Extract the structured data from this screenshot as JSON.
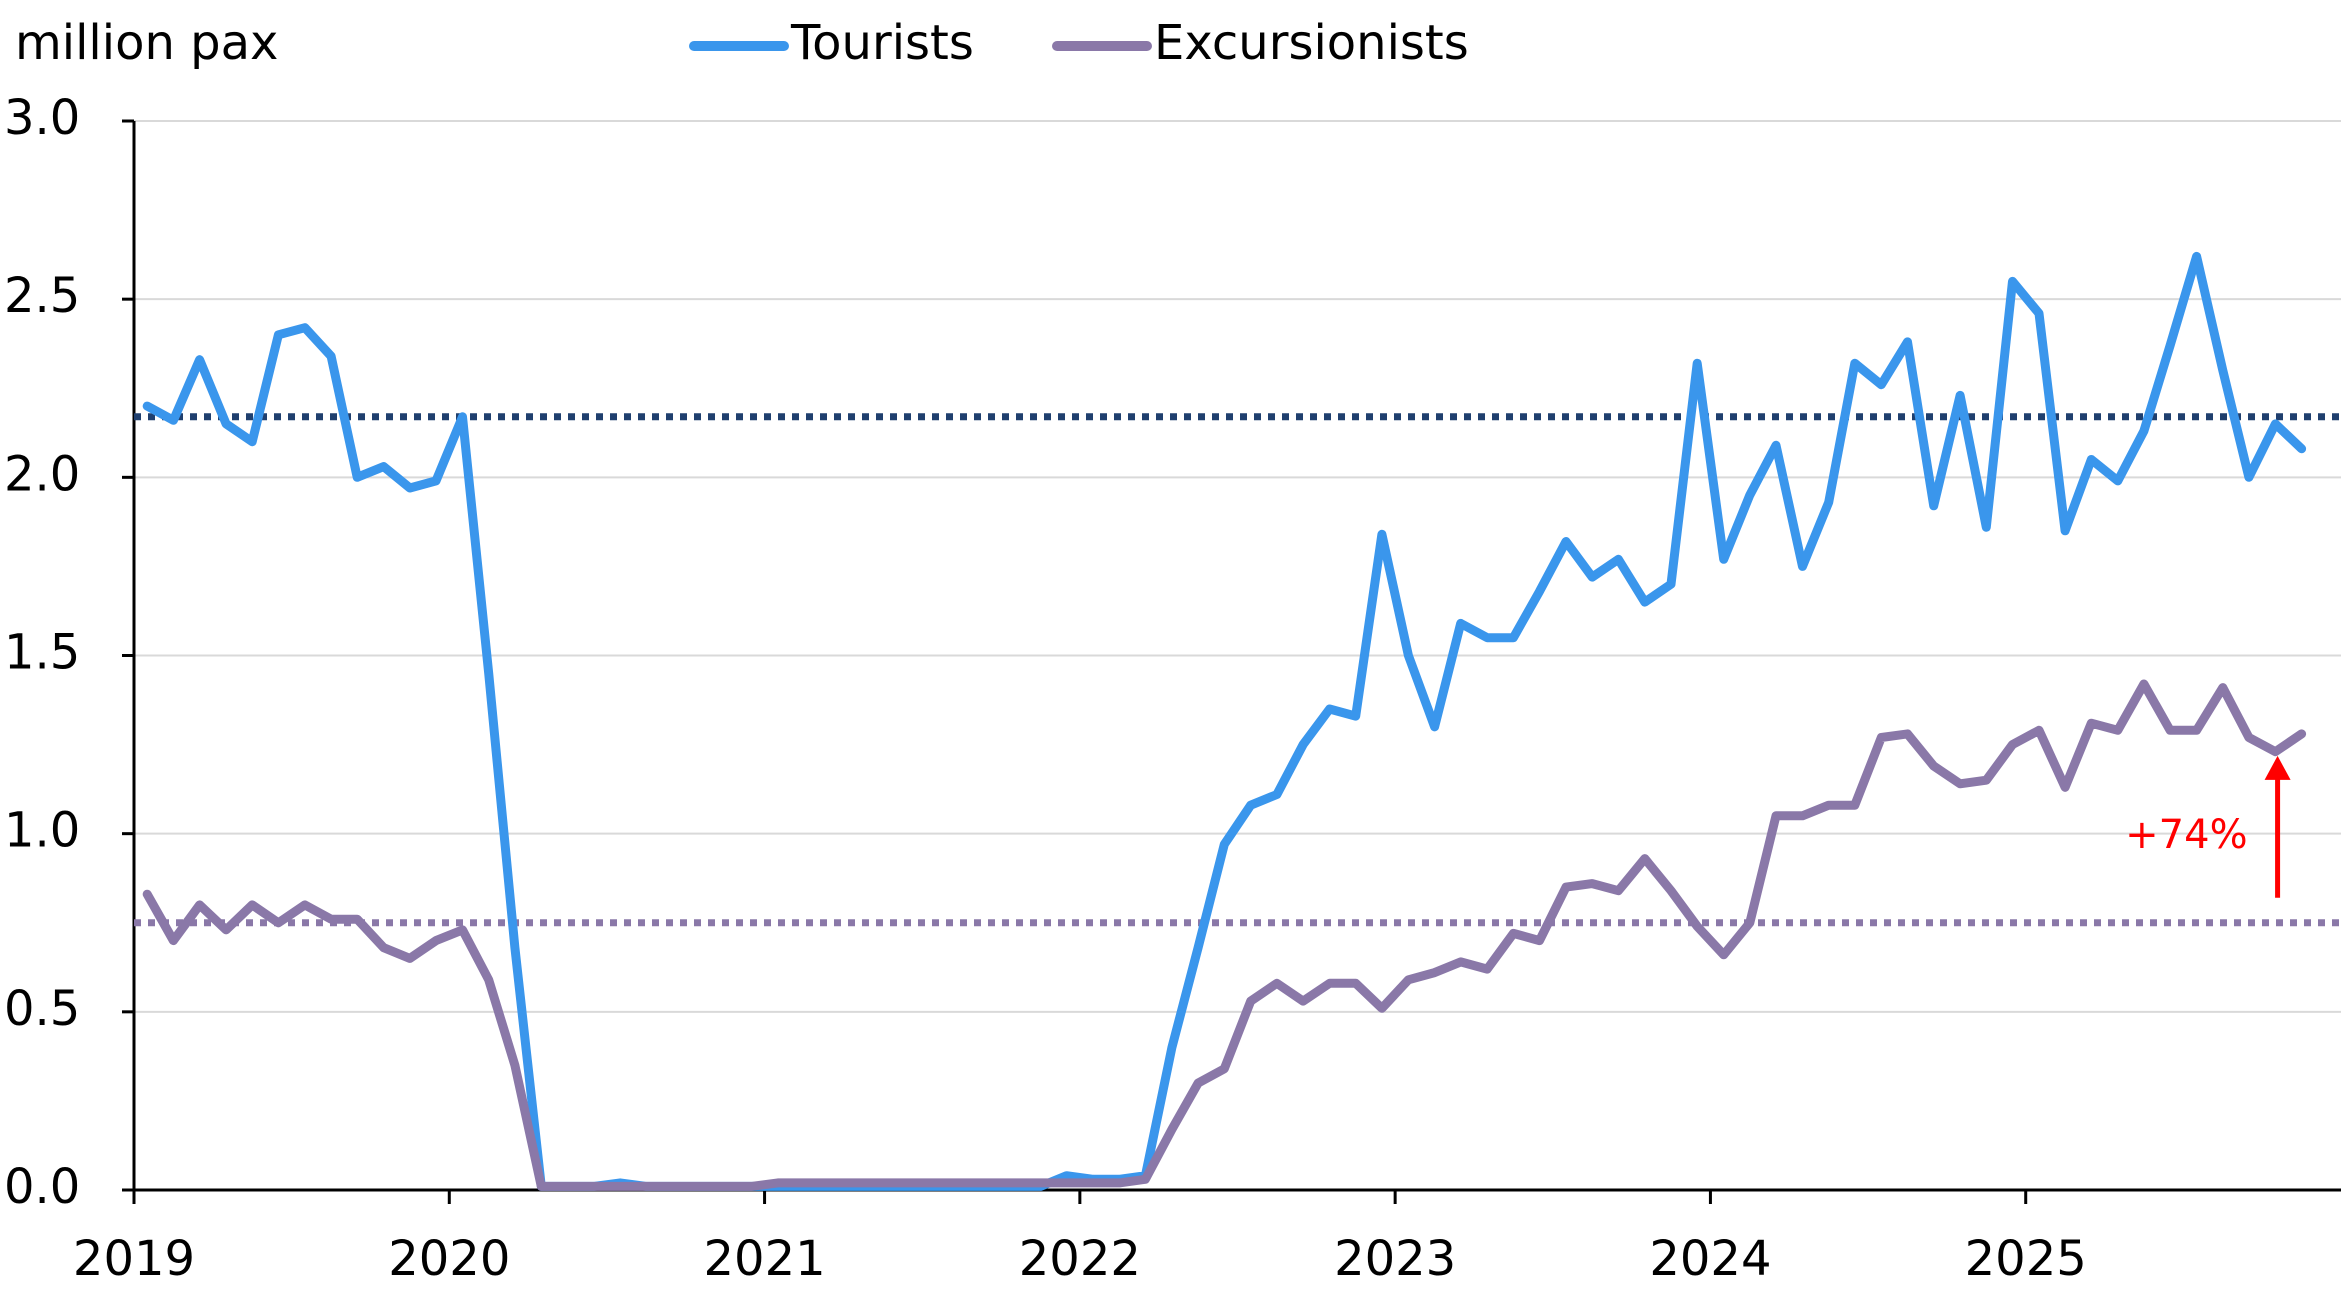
{
  "chart_data": {
    "type": "line",
    "y_axis_label": "million pax",
    "x": [
      2019.042,
      2019.125,
      2019.208,
      2019.292,
      2019.375,
      2019.458,
      2019.542,
      2019.625,
      2019.708,
      2019.792,
      2019.875,
      2019.958,
      2020.042,
      2020.125,
      2020.208,
      2020.292,
      2020.375,
      2020.458,
      2020.542,
      2020.625,
      2020.708,
      2020.792,
      2020.875,
      2020.958,
      2021.042,
      2021.125,
      2021.208,
      2021.292,
      2021.375,
      2021.458,
      2021.542,
      2021.625,
      2021.708,
      2021.792,
      2021.875,
      2021.958,
      2022.042,
      2022.125,
      2022.208,
      2022.292,
      2022.375,
      2022.458,
      2022.542,
      2022.625,
      2022.708,
      2022.792,
      2022.875,
      2022.958,
      2023.042,
      2023.125,
      2023.208,
      2023.292,
      2023.375,
      2023.458,
      2023.542,
      2023.625,
      2023.708,
      2023.792,
      2023.875,
      2023.958,
      2024.042,
      2024.125,
      2024.208,
      2024.292,
      2024.375,
      2024.458,
      2024.542,
      2024.625,
      2024.708,
      2024.792,
      2024.875,
      2024.958,
      2025.042,
      2025.125,
      2025.208,
      2025.292,
      2025.375,
      2025.458,
      2025.542,
      2025.625,
      2025.708,
      2025.792,
      2025.875
    ],
    "series": [
      {
        "name": "Tourists",
        "color": "#3a96ec",
        "values": [
          2.2,
          2.16,
          2.33,
          2.15,
          2.1,
          2.4,
          2.42,
          2.34,
          2.0,
          2.03,
          1.97,
          1.99,
          2.17,
          1.45,
          0.68,
          0.01,
          0.01,
          0.01,
          0.02,
          0.01,
          0.01,
          0.01,
          0.01,
          0.01,
          0.01,
          0.01,
          0.01,
          0.01,
          0.01,
          0.01,
          0.01,
          0.01,
          0.01,
          0.01,
          0.01,
          0.04,
          0.03,
          0.03,
          0.04,
          0.4,
          0.68,
          0.97,
          1.08,
          1.11,
          1.25,
          1.35,
          1.33,
          1.84,
          1.5,
          1.3,
          1.59,
          1.55,
          1.55,
          1.68,
          1.82,
          1.72,
          1.77,
          1.65,
          1.7,
          2.32,
          1.77,
          1.95,
          2.09,
          1.75,
          1.93,
          2.32,
          2.26,
          2.38,
          1.92,
          2.23,
          1.86,
          2.55,
          2.46,
          1.85,
          2.05,
          1.99,
          2.13,
          2.37,
          2.62,
          2.3,
          2.0,
          2.15,
          2.08
        ]
      },
      {
        "name": "Excursionists",
        "color": "#8a78a8",
        "values": [
          0.83,
          0.7,
          0.8,
          0.73,
          0.8,
          0.75,
          0.8,
          0.76,
          0.76,
          0.68,
          0.65,
          0.7,
          0.73,
          0.59,
          0.35,
          0.01,
          0.01,
          0.01,
          0.01,
          0.01,
          0.01,
          0.01,
          0.01,
          0.01,
          0.02,
          0.02,
          0.02,
          0.02,
          0.02,
          0.02,
          0.02,
          0.02,
          0.02,
          0.02,
          0.02,
          0.02,
          0.02,
          0.02,
          0.03,
          0.17,
          0.3,
          0.34,
          0.53,
          0.58,
          0.53,
          0.58,
          0.58,
          0.51,
          0.59,
          0.61,
          0.64,
          0.62,
          0.72,
          0.7,
          0.85,
          0.86,
          0.84,
          0.93,
          0.84,
          0.74,
          0.66,
          0.75,
          1.05,
          1.05,
          1.08,
          1.08,
          1.27,
          1.28,
          1.19,
          1.14,
          1.15,
          1.25,
          1.29,
          1.13,
          1.31,
          1.29,
          1.42,
          1.29,
          1.29,
          1.41,
          1.27,
          1.23,
          1.28
        ]
      }
    ],
    "reference_lines": [
      {
        "value": 2.17,
        "color": "#1f3f6e"
      },
      {
        "value": 0.75,
        "color": "#8a78a8"
      }
    ],
    "annotation": {
      "text": "+74%",
      "color": "#ff0000"
    },
    "xlim": [
      2019,
      2026
    ],
    "xticks": [
      2019,
      2020,
      2021,
      2022,
      2023,
      2024,
      2025
    ],
    "ylim": [
      0,
      3
    ],
    "yticks": [
      {
        "value": 0,
        "label": "0.0"
      },
      0.5,
      {
        "value": 1,
        "label": "1.0"
      },
      1.5,
      {
        "value": 2,
        "label": "2.0"
      },
      2.5,
      {
        "value": 3,
        "label": "3.0"
      }
    ],
    "grid": true
  }
}
